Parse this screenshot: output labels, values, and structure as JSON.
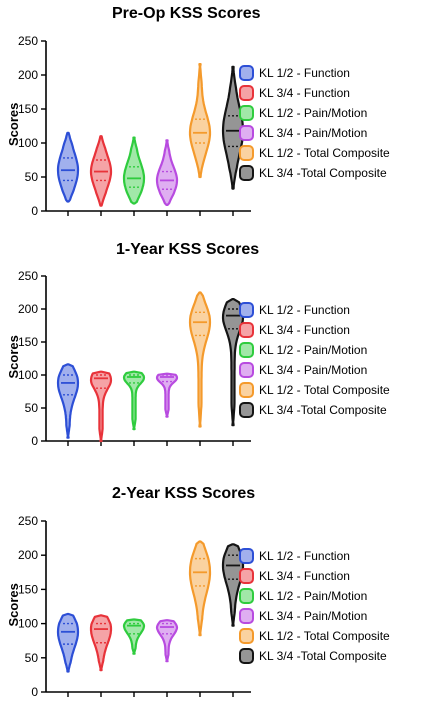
{
  "chart_data": [
    {
      "type": "violin",
      "title": "Pre-Op KSS Scores",
      "xlabel": "",
      "ylabel": "Scores",
      "ylim": [
        0,
        250
      ],
      "yticks": [
        0,
        50,
        100,
        150,
        200,
        250
      ],
      "grid": false,
      "legend_position": "right",
      "series": [
        {
          "name": "KL 1/2 - Function",
          "color": "#2d4fd6",
          "min": 14,
          "max": 115,
          "median": 60,
          "q1": 45,
          "q3": 78
        },
        {
          "name": "KL 3/4 - Function",
          "color": "#e8333a",
          "min": 8,
          "max": 110,
          "median": 58,
          "q1": 45,
          "q3": 75
        },
        {
          "name": "KL 1/2 - Pain/Motion",
          "color": "#2fcc3e",
          "min": 11,
          "max": 108,
          "median": 48,
          "q1": 35,
          "q3": 65
        },
        {
          "name": "KL 3/4 - Pain/Motion",
          "color": "#b84be0",
          "min": 9,
          "max": 104,
          "median": 45,
          "q1": 32,
          "q3": 58
        },
        {
          "name": "KL 1/2 - Total Composite",
          "color": "#f49a2c",
          "min": 50,
          "max": 216,
          "median": 115,
          "q1": 100,
          "q3": 135
        },
        {
          "name": "KL 3/4 -Total Composite",
          "color": "#141414",
          "min": 33,
          "max": 212,
          "median": 118,
          "q1": 95,
          "q3": 140
        }
      ]
    },
    {
      "type": "violin",
      "title": "1-Year KSS Scores",
      "xlabel": "",
      "ylabel": "Scores",
      "ylim": [
        0,
        250
      ],
      "yticks": [
        0,
        50,
        100,
        150,
        200,
        250
      ],
      "grid": false,
      "legend_position": "right",
      "series": [
        {
          "name": "KL 1/2 - Function",
          "color": "#2d4fd6",
          "min": 5,
          "max": 116,
          "median": 88,
          "q1": 70,
          "q3": 100
        },
        {
          "name": "KL 3/4 - Function",
          "color": "#e8333a",
          "min": 0,
          "max": 105,
          "median": 95,
          "q1": 80,
          "q3": 100
        },
        {
          "name": "KL 1/2 - Pain/Motion",
          "color": "#2fcc3e",
          "min": 18,
          "max": 105,
          "median": 97,
          "q1": 88,
          "q3": 100
        },
        {
          "name": "KL 3/4 - Pain/Motion",
          "color": "#b84be0",
          "min": 37,
          "max": 102,
          "median": 97,
          "q1": 90,
          "q3": 100
        },
        {
          "name": "KL 1/2 - Total Composite",
          "color": "#f49a2c",
          "min": 22,
          "max": 225,
          "median": 180,
          "q1": 160,
          "q3": 195
        },
        {
          "name": "KL 3/4 -Total Composite",
          "color": "#141414",
          "min": 24,
          "max": 215,
          "median": 190,
          "q1": 170,
          "q3": 200
        }
      ]
    },
    {
      "type": "violin",
      "title": "2-Year KSS Scores",
      "xlabel": "",
      "ylabel": "Scores",
      "ylim": [
        0,
        250
      ],
      "yticks": [
        0,
        50,
        100,
        150,
        200,
        250
      ],
      "grid": false,
      "legend_position": "right",
      "series": [
        {
          "name": "KL 1/2 - Function",
          "color": "#2d4fd6",
          "min": 30,
          "max": 114,
          "median": 88,
          "q1": 70,
          "q3": 100
        },
        {
          "name": "KL 3/4 - Function",
          "color": "#e8333a",
          "min": 32,
          "max": 112,
          "median": 92,
          "q1": 72,
          "q3": 100
        },
        {
          "name": "KL 1/2 - Pain/Motion",
          "color": "#2fcc3e",
          "min": 56,
          "max": 106,
          "median": 97,
          "q1": 85,
          "q3": 100
        },
        {
          "name": "KL 3/4 - Pain/Motion",
          "color": "#b84be0",
          "min": 45,
          "max": 105,
          "median": 95,
          "q1": 85,
          "q3": 100
        },
        {
          "name": "KL 1/2 - Total Composite",
          "color": "#f49a2c",
          "min": 83,
          "max": 220,
          "median": 175,
          "q1": 155,
          "q3": 195
        },
        {
          "name": "KL 3/4 -Total Composite",
          "color": "#141414",
          "min": 97,
          "max": 216,
          "median": 185,
          "q1": 165,
          "q3": 200
        }
      ]
    }
  ]
}
